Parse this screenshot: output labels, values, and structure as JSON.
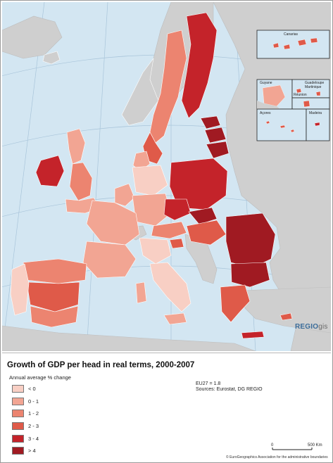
{
  "map": {
    "brand": {
      "main": "REGIO",
      "suffix": "gis"
    },
    "insets": {
      "canarias": "Canarias",
      "guyane": "Guyane",
      "guadeloupe_martinique": "Guadeloupe\nMartinique",
      "reunion": "Réunion",
      "acores": "Açores",
      "madeira": "Madeira"
    }
  },
  "title": "Growth of GDP per head in real terms, 2000-2007",
  "legend": {
    "subtitle": "Annual average % change",
    "items": [
      {
        "label": "< 0",
        "color": "#f8cfc4"
      },
      {
        "label": "0 - 1",
        "color": "#f2a593"
      },
      {
        "label": "1 - 2",
        "color": "#ec8470"
      },
      {
        "label": "2 - 3",
        "color": "#df5a49"
      },
      {
        "label": "3 - 4",
        "color": "#c4232a"
      },
      {
        "label": "> 4",
        "color": "#a01a22"
      }
    ]
  },
  "notes": {
    "eu27": "EU27 = 1.8",
    "sources": "Sources: Eurostat, DG REGIO"
  },
  "scalebar": {
    "start": "0",
    "end": "500 Km"
  },
  "copyright": "© EuroGeographics Association for the administrative boundaries",
  "colors": {
    "sea": "#d3e6f2",
    "non_eu": "#cfcfcf",
    "graticule": "#a9c5da",
    "border": "#ffffff"
  }
}
